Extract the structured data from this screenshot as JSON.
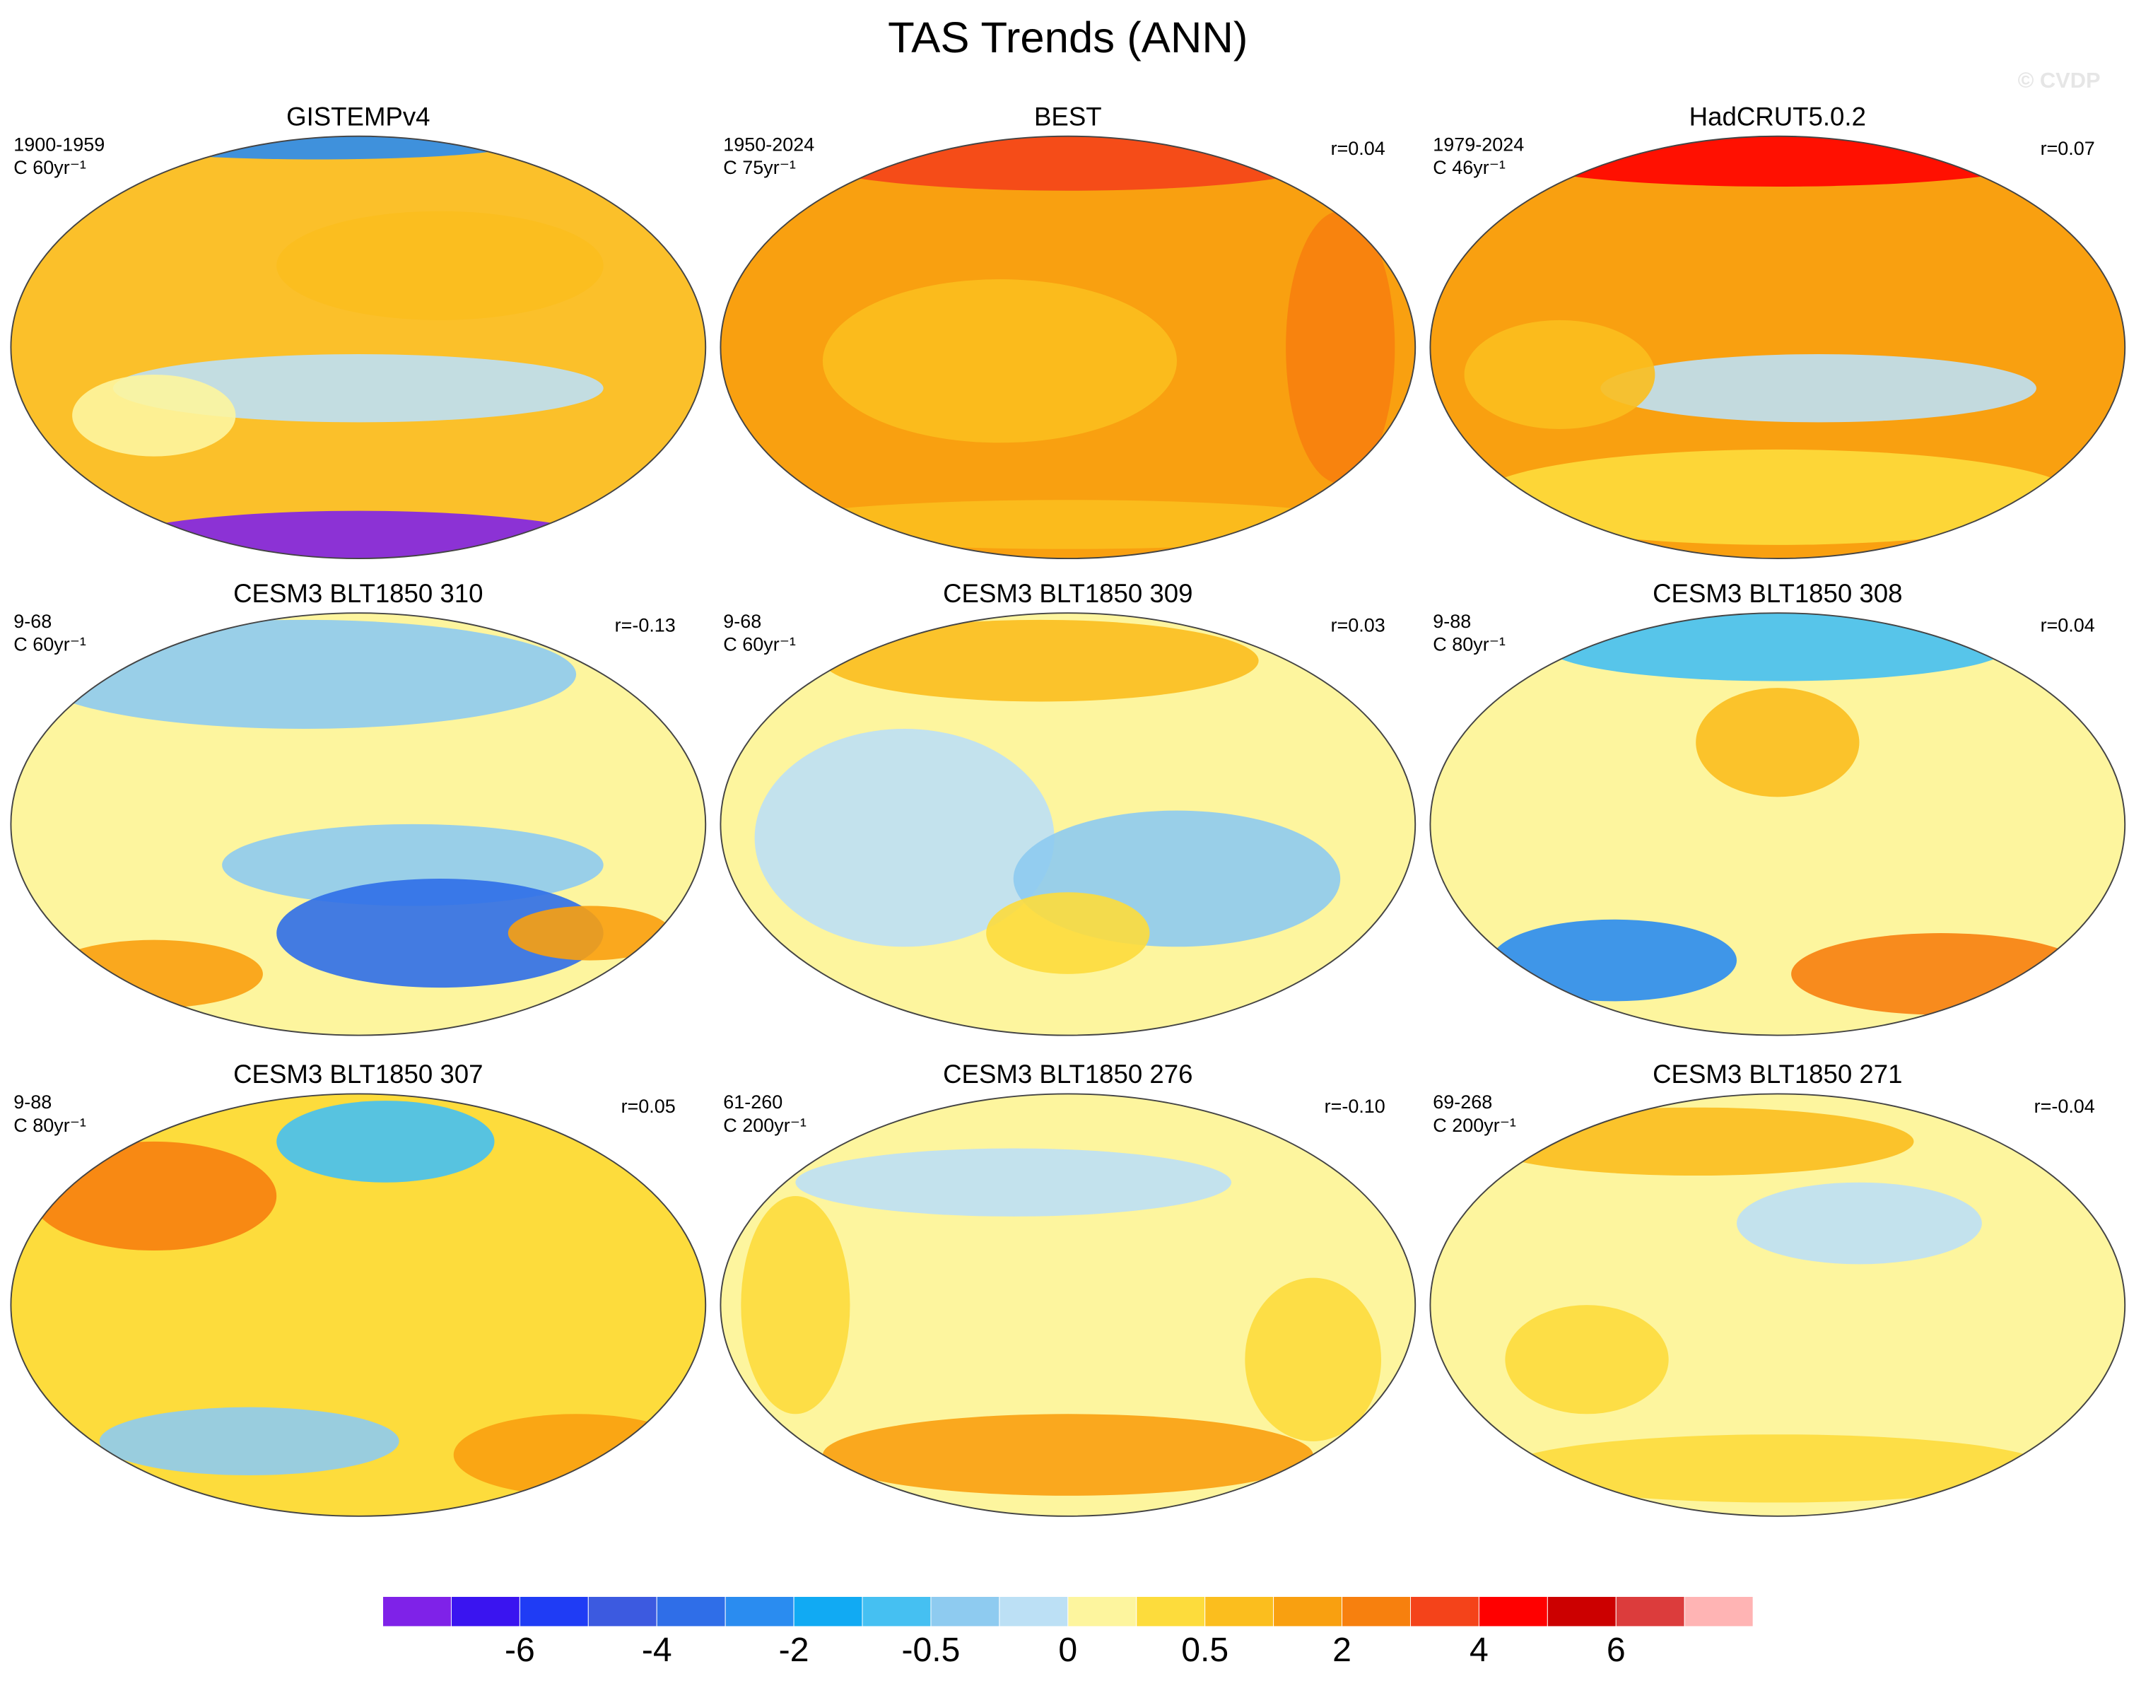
{
  "title": "TAS Trends (ANN)",
  "watermark": "© CVDP",
  "panels": [
    {
      "title": "GISTEMPv4",
      "period": "1900-1959",
      "units": "C 60yr⁻¹"
    },
    {
      "title": "BEST",
      "period": "1950-2024",
      "units": "C 75yr⁻¹",
      "correlation": "r=0.04"
    },
    {
      "title": "HadCRUT5.0.2",
      "period": "1979-2024",
      "units": "C 46yr⁻¹",
      "correlation": "r=0.07"
    },
    {
      "title": "CESM3 BLT1850 310",
      "period": "9-68",
      "units": "C 60yr⁻¹",
      "correlation": "r=-0.13"
    },
    {
      "title": "CESM3 BLT1850 309",
      "period": "9-68",
      "units": "C 60yr⁻¹",
      "correlation": "r=0.03"
    },
    {
      "title": "CESM3 BLT1850 308",
      "period": "9-88",
      "units": "C 80yr⁻¹",
      "correlation": "r=0.04"
    },
    {
      "title": "CESM3 BLT1850 307",
      "period": "9-88",
      "units": "C 80yr⁻¹",
      "correlation": "r=0.05"
    },
    {
      "title": "CESM3 BLT1850 276",
      "period": "61-260",
      "units": "C 200yr⁻¹",
      "correlation": "r=-0.10"
    },
    {
      "title": "CESM3 BLT1850 271",
      "period": "69-268",
      "units": "C 200yr⁻¹",
      "correlation": "r=-0.04"
    }
  ],
  "colorbar": {
    "colors": [
      "#7f22e8",
      "#3a14f0",
      "#1f3cf5",
      "#3c5ae0",
      "#2f6ee8",
      "#2a8cf0",
      "#11aaf3",
      "#45c0f2",
      "#8ecbf0",
      "#bce0f5",
      "#fdf59e",
      "#fddc3c",
      "#fbbe1e",
      "#f9a010",
      "#f7800e",
      "#f4431a",
      "#ff0000",
      "#cc0000",
      "#dc3c3c",
      "#ffb4b4"
    ],
    "labels": [
      -6,
      -4,
      -2,
      -0.5,
      0,
      0.5,
      2,
      4,
      6
    ]
  }
}
